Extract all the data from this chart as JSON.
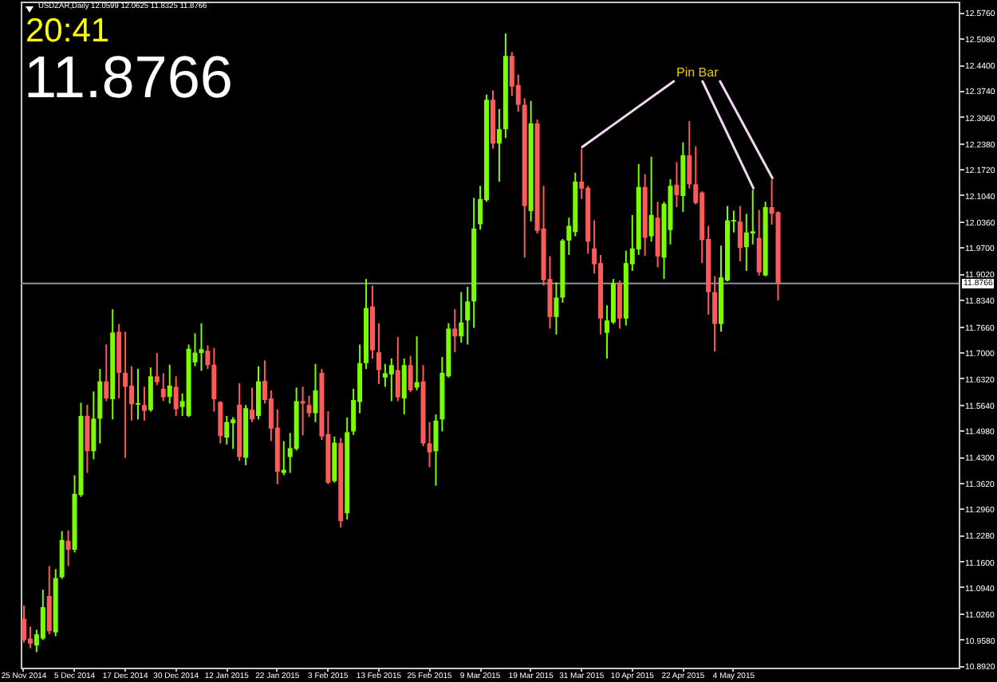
{
  "chart_data": {
    "type": "candlestick",
    "title": "USDZAR,Daily 12.0599 12.0625 11.8325 11.8766",
    "categories": [
      "25 Nov 2014",
      null,
      null,
      null,
      null,
      null,
      null,
      null,
      "5 Dec 2014",
      null,
      null,
      null,
      null,
      null,
      null,
      null,
      "17 Dec 2014",
      null,
      null,
      null,
      null,
      null,
      null,
      null,
      "30 Dec 2014",
      null,
      null,
      null,
      null,
      null,
      null,
      null,
      "12 Jan 2015",
      null,
      null,
      null,
      null,
      null,
      null,
      null,
      "22 Jan 2015",
      null,
      null,
      null,
      null,
      null,
      null,
      null,
      "3 Feb 2015",
      null,
      null,
      null,
      null,
      null,
      null,
      null,
      "13 Feb 2015",
      null,
      null,
      null,
      null,
      null,
      null,
      null,
      "25 Feb 2015",
      null,
      null,
      null,
      null,
      null,
      null,
      null,
      "9 Mar 2015",
      null,
      null,
      null,
      null,
      null,
      null,
      null,
      "19 Mar 2015",
      null,
      null,
      null,
      null,
      null,
      null,
      null,
      "31 Mar 2015",
      null,
      null,
      null,
      null,
      null,
      null,
      null,
      "10 Apr 2015",
      null,
      null,
      null,
      null,
      null,
      null,
      null,
      "22 Apr 2015",
      null,
      null,
      null,
      null,
      null,
      null,
      null,
      "4 May 2015",
      null,
      null,
      null,
      null,
      null,
      null,
      null,
      null,
      null,
      null,
      null,
      null,
      null,
      null,
      null,
      null,
      null,
      null,
      null,
      null,
      null,
      null,
      null,
      null,
      null,
      null,
      null,
      null,
      null,
      null,
      null,
      null,
      null,
      null,
      null
    ],
    "ohlc": [
      [
        11.012,
        11.046,
        10.951,
        10.957
      ],
      [
        10.961,
        10.992,
        10.936,
        10.948
      ],
      [
        10.943,
        10.984,
        10.926,
        10.972
      ],
      [
        10.961,
        11.087,
        10.957,
        11.042
      ],
      [
        11.071,
        11.148,
        10.972,
        10.98
      ],
      [
        10.977,
        11.14,
        10.967,
        11.117
      ],
      [
        11.119,
        11.238,
        11.115,
        11.215
      ],
      [
        11.213,
        11.24,
        11.148,
        11.19
      ],
      [
        11.19,
        11.382,
        11.183,
        11.334
      ],
      [
        11.331,
        11.569,
        11.326,
        11.535
      ],
      [
        11.535,
        11.564,
        11.388,
        11.444
      ],
      [
        11.444,
        11.598,
        11.423,
        11.528
      ],
      [
        11.528,
        11.656,
        11.464,
        11.624
      ],
      [
        11.624,
        11.719,
        11.573,
        11.58
      ],
      [
        11.578,
        11.81,
        11.526,
        11.75
      ],
      [
        11.752,
        11.772,
        11.58,
        11.646
      ],
      [
        11.646,
        11.752,
        11.427,
        11.61
      ],
      [
        11.613,
        11.663,
        11.523,
        11.565
      ],
      [
        11.564,
        11.656,
        11.526,
        11.568
      ],
      [
        11.563,
        11.61,
        11.523,
        11.548
      ],
      [
        11.55,
        11.66,
        11.546,
        11.637
      ],
      [
        11.637,
        11.697,
        11.614,
        11.622
      ],
      [
        11.605,
        11.645,
        11.573,
        11.583
      ],
      [
        11.584,
        11.667,
        11.567,
        11.613
      ],
      [
        11.61,
        11.637,
        11.535,
        11.552
      ],
      [
        11.558,
        11.593,
        11.535,
        11.573
      ],
      [
        11.535,
        11.719,
        11.532,
        11.708
      ],
      [
        11.673,
        11.748,
        11.663,
        11.698
      ],
      [
        11.697,
        11.774,
        11.651,
        11.707
      ],
      [
        11.703,
        11.717,
        11.656,
        11.666
      ],
      [
        11.667,
        11.71,
        11.546,
        11.578
      ],
      [
        11.571,
        11.573,
        11.464,
        11.483
      ],
      [
        11.479,
        11.535,
        11.461,
        11.519
      ],
      [
        11.516,
        11.532,
        11.45,
        11.526
      ],
      [
        11.564,
        11.619,
        11.419,
        11.429
      ],
      [
        11.427,
        11.563,
        11.408,
        11.555
      ],
      [
        11.551,
        11.608,
        11.519,
        11.526
      ],
      [
        11.535,
        11.663,
        11.526,
        11.624
      ],
      [
        11.625,
        11.678,
        11.567,
        11.576
      ],
      [
        11.58,
        11.601,
        11.47,
        11.502
      ],
      [
        11.505,
        11.552,
        11.359,
        11.391
      ],
      [
        11.388,
        11.47,
        11.382,
        11.396
      ],
      [
        11.429,
        11.491,
        11.388,
        11.452
      ],
      [
        11.45,
        11.608,
        11.446,
        11.573
      ],
      [
        11.573,
        11.61,
        11.485,
        11.567
      ],
      [
        11.563,
        11.587,
        11.532,
        11.542
      ],
      [
        11.542,
        11.669,
        11.519,
        11.601
      ],
      [
        11.646,
        11.656,
        11.473,
        11.482
      ],
      [
        11.488,
        11.547,
        11.359,
        11.363
      ],
      [
        11.367,
        11.482,
        11.363,
        11.466
      ],
      [
        11.465,
        11.478,
        11.247,
        11.264
      ],
      [
        11.284,
        11.531,
        11.268,
        11.493
      ],
      [
        11.495,
        11.605,
        11.486,
        11.576
      ],
      [
        11.571,
        11.719,
        11.542,
        11.671
      ],
      [
        11.671,
        11.888,
        11.656,
        11.813
      ],
      [
        11.817,
        11.871,
        11.683,
        11.704
      ],
      [
        11.699,
        11.774,
        11.617,
        11.653
      ],
      [
        11.634,
        11.669,
        11.61,
        11.645
      ],
      [
        11.642,
        11.683,
        11.573,
        11.666
      ],
      [
        11.653,
        11.738,
        11.573,
        11.583
      ],
      [
        11.58,
        11.683,
        11.539,
        11.666
      ],
      [
        11.666,
        11.69,
        11.596,
        11.601
      ],
      [
        11.608,
        11.74,
        11.601,
        11.622
      ],
      [
        11.624,
        11.666,
        11.457,
        11.464
      ],
      [
        11.464,
        11.519,
        11.403,
        11.441
      ],
      [
        11.444,
        11.539,
        11.355,
        11.523
      ],
      [
        11.526,
        11.687,
        11.495,
        11.646
      ],
      [
        11.637,
        11.774,
        11.634,
        11.76
      ],
      [
        11.76,
        11.81,
        11.699,
        11.74
      ],
      [
        11.74,
        11.854,
        11.724,
        11.776
      ],
      [
        11.781,
        11.868,
        11.719,
        11.83
      ],
      [
        11.83,
        12.097,
        11.762,
        12.018
      ],
      [
        12.029,
        12.128,
        12.015,
        12.094
      ],
      [
        12.091,
        12.363,
        12.087,
        12.35
      ],
      [
        12.35,
        12.374,
        12.224,
        12.237
      ],
      [
        12.237,
        12.326,
        12.139,
        12.274
      ],
      [
        12.274,
        12.521,
        12.251,
        12.463
      ],
      [
        12.463,
        12.473,
        12.36,
        12.384
      ],
      [
        12.388,
        12.415,
        12.319,
        12.337
      ],
      [
        12.337,
        12.354,
        11.943,
        12.076
      ],
      [
        12.063,
        12.347,
        12.036,
        12.289
      ],
      [
        12.289,
        12.299,
        12.005,
        12.012
      ],
      [
        12.018,
        12.128,
        11.871,
        11.885
      ],
      [
        11.888,
        11.947,
        11.76,
        11.79
      ],
      [
        11.79,
        11.879,
        11.745,
        11.84
      ],
      [
        11.84,
        11.991,
        11.827,
        11.987
      ],
      [
        11.987,
        12.046,
        11.95,
        12.025
      ],
      [
        12.009,
        12.162,
        11.998,
        12.139
      ],
      [
        12.139,
        12.224,
        12.094,
        12.121
      ],
      [
        12.123,
        12.128,
        11.953,
        11.984
      ],
      [
        11.967,
        12.039,
        11.902,
        11.926
      ],
      [
        11.929,
        11.95,
        11.745,
        11.786
      ],
      [
        11.749,
        11.82,
        11.683,
        11.781
      ],
      [
        11.776,
        11.888,
        11.772,
        11.877
      ],
      [
        11.877,
        11.884,
        11.76,
        11.786
      ],
      [
        11.786,
        11.961,
        11.768,
        11.929
      ],
      [
        11.926,
        12.053,
        11.909,
        11.967
      ],
      [
        11.964,
        12.184,
        11.95,
        12.125
      ],
      [
        12.125,
        12.158,
        11.947,
        11.994
      ],
      [
        11.998,
        12.203,
        11.984,
        12.053
      ],
      [
        12.046,
        12.087,
        11.918,
        11.946
      ],
      [
        11.943,
        12.087,
        11.888,
        12.082
      ],
      [
        12.014,
        12.145,
        11.977,
        12.128
      ],
      [
        12.131,
        12.189,
        12.073,
        12.104
      ],
      [
        12.102,
        12.24,
        12.061,
        12.207
      ],
      [
        12.207,
        12.295,
        12.121,
        12.132
      ],
      [
        12.132,
        12.23,
        12.08,
        12.084
      ],
      [
        12.111,
        12.114,
        11.929,
        11.988
      ],
      [
        11.991,
        12.025,
        11.796,
        11.854
      ],
      [
        11.854,
        11.895,
        11.701,
        11.772
      ],
      [
        11.772,
        11.974,
        11.752,
        11.892
      ],
      [
        11.884,
        12.076,
        11.882,
        12.039
      ],
      [
        12.036,
        12.064,
        12.008,
        12.04
      ],
      [
        12.036,
        12.076,
        11.933,
        11.968
      ],
      [
        11.97,
        12.056,
        11.909,
        12.008
      ],
      [
        12.005,
        12.118,
        11.977,
        12.011
      ],
      [
        11.994,
        12.066,
        11.897,
        11.905
      ],
      [
        11.897,
        12.087,
        11.895,
        12.073
      ],
      [
        12.073,
        12.144,
        12.028,
        12.056
      ],
      [
        12.0599,
        12.0625,
        11.8325,
        11.8766
      ],
      null,
      null,
      null,
      null,
      null,
      null,
      null,
      null,
      null,
      null,
      null,
      null,
      null,
      null,
      null,
      null,
      null,
      null,
      null,
      null,
      null,
      null,
      null,
      null,
      null,
      null,
      null,
      null
    ],
    "colors": [
      "#ff5a5a",
      "#ff5a5a",
      "#7cfc00",
      "#7cfc00",
      "#ff5a5a",
      "#7cfc00",
      "#7cfc00",
      "#ff5a5a",
      "#7cfc00",
      "#7cfc00",
      "#ff5a5a",
      "#7cfc00",
      "#7cfc00",
      "#ff5a5a",
      "#7cfc00",
      "#ff5a5a",
      "#ff5a5a",
      "#ff5a5a",
      "#7cfc00",
      "#ff5a5a",
      "#7cfc00",
      "#ff5a5a",
      "#ff5a5a",
      "#7cfc00",
      "#ff5a5a",
      "#7cfc00",
      "#7cfc00",
      "#7cfc00",
      "#7cfc00",
      "#ff5a5a",
      "#ff5a5a",
      "#ff5a5a",
      "#7cfc00",
      "#7cfc00",
      "#ff5a5a",
      "#7cfc00",
      "#ff5a5a",
      "#7cfc00",
      "#ff5a5a",
      "#ff5a5a",
      "#ff5a5a",
      "#7cfc00",
      "#7cfc00",
      "#7cfc00",
      "#ff5a5a",
      "#ff5a5a",
      "#7cfc00",
      "#ff5a5a",
      "#ff5a5a",
      "#7cfc00",
      "#ff5a5a",
      "#7cfc00",
      "#7cfc00",
      "#7cfc00",
      "#7cfc00",
      "#ff5a5a",
      "#ff5a5a",
      "#7cfc00",
      "#7cfc00",
      "#ff5a5a",
      "#7cfc00",
      "#ff5a5a",
      "#7cfc00",
      "#ff5a5a",
      "#ff5a5a",
      "#7cfc00",
      "#7cfc00",
      "#7cfc00",
      "#ff5a5a",
      "#7cfc00",
      "#7cfc00",
      "#7cfc00",
      "#7cfc00",
      "#7cfc00",
      "#ff5a5a",
      "#7cfc00",
      "#7cfc00",
      "#ff5a5a",
      "#ff5a5a",
      "#ff5a5a",
      "#7cfc00",
      "#ff5a5a",
      "#ff5a5a",
      "#ff5a5a",
      "#7cfc00",
      "#7cfc00",
      "#7cfc00",
      "#7cfc00",
      "#ff5a5a",
      "#ff5a5a",
      "#ff5a5a",
      "#ff5a5a",
      "#7cfc00",
      "#7cfc00",
      "#ff5a5a",
      "#7cfc00",
      "#7cfc00",
      "#7cfc00",
      "#ff5a5a",
      "#7cfc00",
      "#ff5a5a",
      "#7cfc00",
      "#7cfc00",
      "#ff5a5a",
      "#7cfc00",
      "#ff5a5a",
      "#ff5a5a",
      "#ff5a5a",
      "#ff5a5a",
      "#ff5a5a",
      "#7cfc00",
      "#7cfc00",
      "#7cfc00",
      "#ff5a5a",
      "#7cfc00",
      "#7cfc00",
      "#ff5a5a",
      "#7cfc00",
      "#ff5a5a",
      "#ff5a5a",
      null,
      null,
      null,
      null,
      null,
      null,
      null,
      null,
      null,
      null,
      null,
      null,
      null,
      null,
      null,
      null,
      null,
      null,
      null,
      null,
      null,
      null,
      null,
      null,
      null,
      null,
      null,
      null
    ],
    "ylim": [
      10.886,
      12.603
    ],
    "yticks": [
      {
        "value": 12.576,
        "label": "12.5760"
      },
      {
        "value": 12.508,
        "label": "12.5080"
      },
      {
        "value": 12.44,
        "label": "12.4400"
      },
      {
        "value": 12.374,
        "label": "12.3740"
      },
      {
        "value": 12.306,
        "label": "12.3060"
      },
      {
        "value": 12.238,
        "label": "12.2380"
      },
      {
        "value": 12.172,
        "label": "12.1720"
      },
      {
        "value": 12.104,
        "label": "12.1040"
      },
      {
        "value": 12.036,
        "label": "12.0360"
      },
      {
        "value": 11.97,
        "label": "11.9700"
      },
      {
        "value": 11.902,
        "label": "11.9020"
      },
      {
        "value": 11.834,
        "label": "11.8340"
      },
      {
        "value": 11.766,
        "label": "11.7660"
      },
      {
        "value": 11.7,
        "label": "11.7000"
      },
      {
        "value": 11.632,
        "label": "11.6320"
      },
      {
        "value": 11.564,
        "label": "11.5640"
      },
      {
        "value": 11.498,
        "label": "11.4980"
      },
      {
        "value": 11.43,
        "label": "11.4300"
      },
      {
        "value": 11.362,
        "label": "11.3620"
      },
      {
        "value": 11.296,
        "label": "11.2960"
      },
      {
        "value": 11.228,
        "label": "11.2280"
      },
      {
        "value": 11.16,
        "label": "11.1600"
      },
      {
        "value": 11.094,
        "label": "11.0940"
      },
      {
        "value": 11.026,
        "label": "11.0260"
      },
      {
        "value": 10.958,
        "label": "10.9580"
      },
      {
        "value": 10.892,
        "label": "10.8920"
      }
    ],
    "ref_lines": [
      {
        "axis": "y",
        "value": 11.8766,
        "label": "11.8766",
        "color": "#8a939c"
      }
    ],
    "annotations": [
      "20:41",
      "11.8766",
      {
        "text": "Pin Bar",
        "x": "31 Mar 2015",
        "y": 12.224
      }
    ]
  }
}
